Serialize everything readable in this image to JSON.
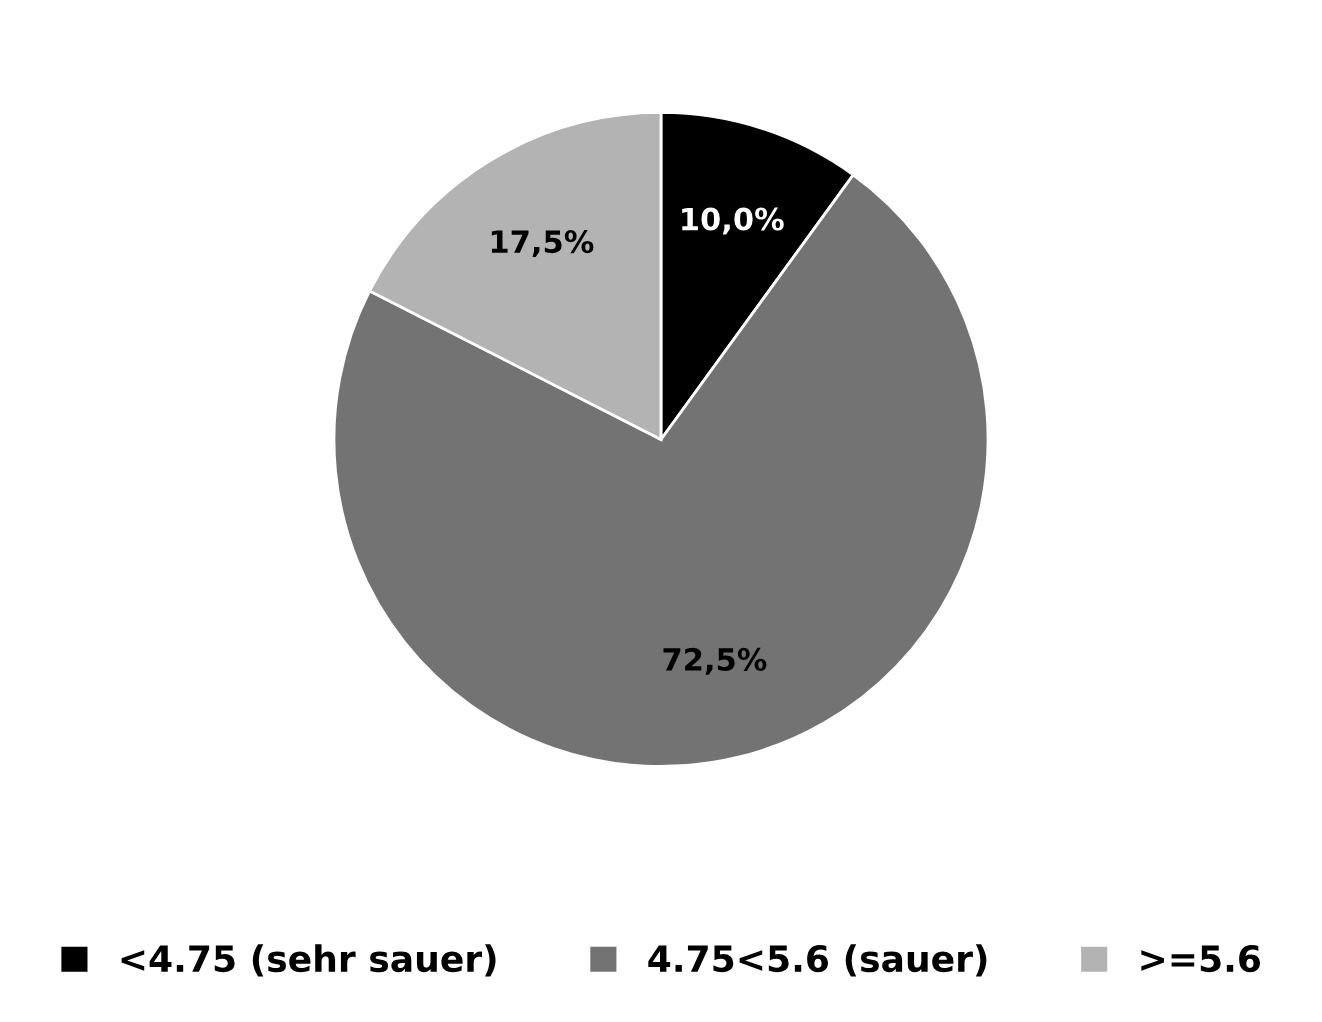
{
  "chart_data": {
    "type": "pie",
    "categories": [
      "<4.75 (sehr sauer)",
      "4.75<5.6 (sauer)",
      ">=5.6"
    ],
    "values": [
      10.0,
      72.5,
      17.5
    ],
    "value_labels": [
      "10,0%",
      "72,5%",
      "17,5%"
    ],
    "colors": [
      "#000000",
      "#737373",
      "#b3b3b3"
    ],
    "legend": "bottom"
  }
}
